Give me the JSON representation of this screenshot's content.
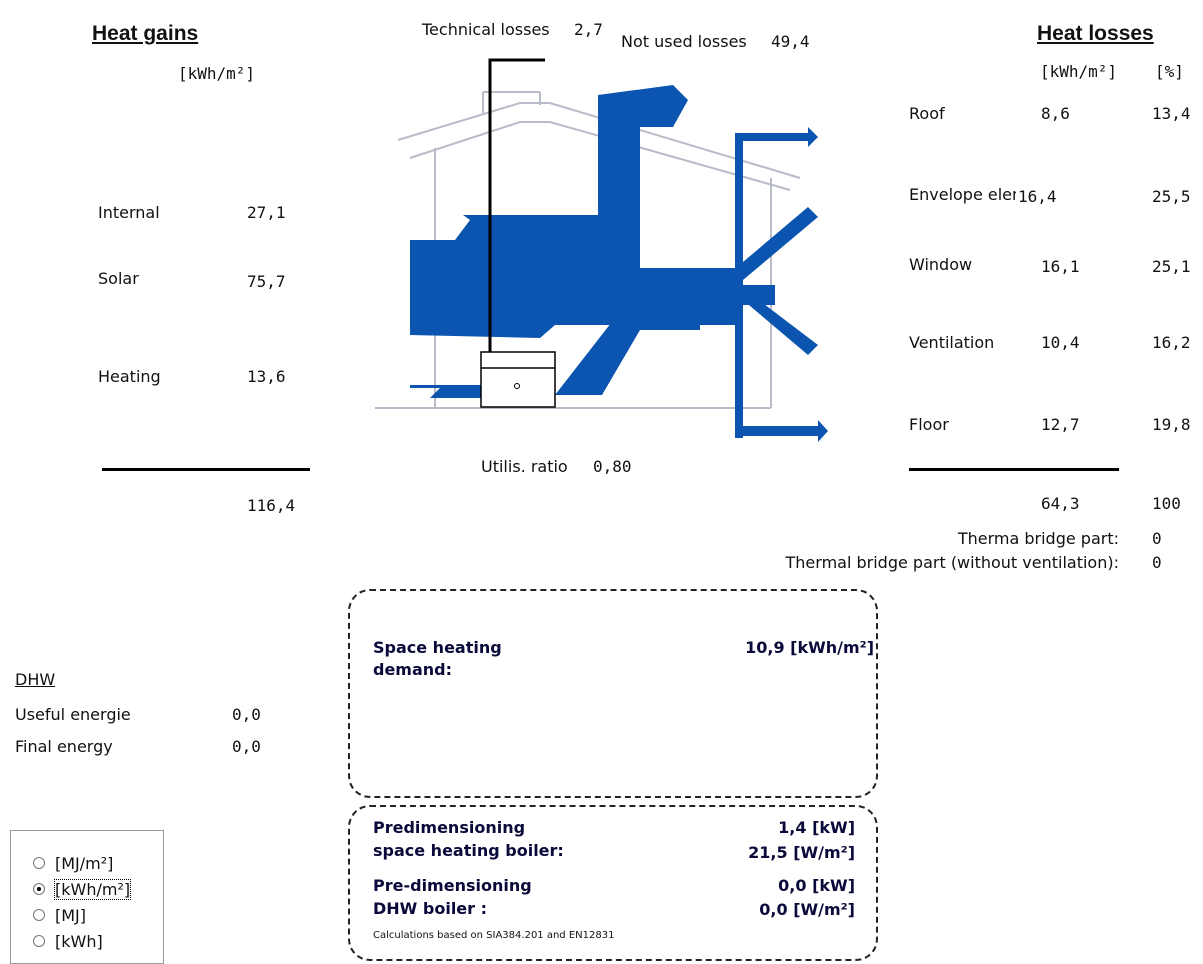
{
  "gains": {
    "title": "Heat gains",
    "unit": "[kWh/m²]",
    "rows": [
      {
        "label": "Internal",
        "value": "27,1"
      },
      {
        "label": "Solar",
        "value": "75,7"
      },
      {
        "label": "Heating",
        "value": "13,6"
      }
    ],
    "total": "116,4"
  },
  "losses": {
    "title": "Heat losses",
    "unit_kwh": "[kWh/m²]",
    "unit_pct": "[%]",
    "rows": [
      {
        "label": "Roof",
        "value": "8,6",
        "pct": "13,4"
      },
      {
        "label": "Envelope eleme",
        "value": "16,4",
        "pct": "25,5"
      },
      {
        "label": "Window",
        "value": "16,1",
        "pct": "25,1"
      },
      {
        "label": "Ventilation",
        "value": "10,4",
        "pct": "16,2"
      },
      {
        "label": "Floor",
        "value": "12,7",
        "pct": "19,8"
      }
    ],
    "total": "64,3",
    "total_pct": "100",
    "bridge_label": "Therma bridge part:",
    "bridge_value": "0",
    "bridge_nv_label": "Thermal bridge part (without ventilation):",
    "bridge_nv_value": "0"
  },
  "diagram": {
    "technical_label": "Technical losses",
    "technical_value": "2,7",
    "notused_label": "Not used losses",
    "notused_value": "49,4",
    "utilis_label": "Utilis. ratio",
    "utilis_value": "0,80",
    "flow_color": "#0b55b0",
    "house_color": "#b8bcc8"
  },
  "demand": {
    "line1": "Space heating",
    "line2": "demand:",
    "value": "10,9 [kWh/m²]"
  },
  "boiler": {
    "heat_line1": "Predimensioning",
    "heat_line2": "space heating boiler:",
    "heat_kw": "1,4 [kW]",
    "heat_wm2": "21,5 [W/m²]",
    "dhw_line1": "Pre-dimensioning",
    "dhw_line2": "DHW boiler :",
    "dhw_kw": "0,0 [kW]",
    "dhw_wm2": "0,0 [W/m²]",
    "footnote": "Calculations based on SIA384.201 and EN12831"
  },
  "dhw": {
    "title": "DHW",
    "useful_label": "Useful energie",
    "useful_value": "0,0",
    "final_label": "Final energy",
    "final_value": "0,0"
  },
  "units": {
    "options": [
      "[MJ/m²]",
      "[kWh/m²]",
      "[MJ]",
      "[kWh]"
    ],
    "selected": "[kWh/m²]"
  }
}
